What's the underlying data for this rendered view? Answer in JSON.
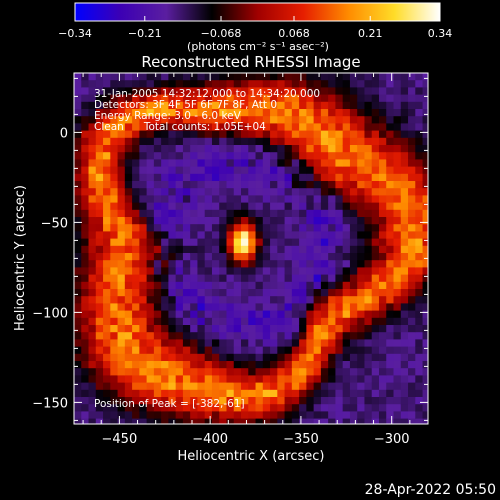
{
  "chart_data": {
    "type": "heatmap",
    "title": "Reconstructed RHESSI Image",
    "colorbar": {
      "label": "(photons cm⁻² s⁻¹ asec⁻²)",
      "min": -0.34,
      "max": 0.34,
      "tick_values": [
        -0.34,
        -0.21,
        -0.068,
        0.068,
        0.21,
        0.34
      ],
      "tick_labels": [
        "−0.34",
        "−0.21",
        "−0.068",
        "0.068",
        "0.21",
        "0.34"
      ],
      "colors": [
        "#0000ff",
        "#3c00b4",
        "#5a1ea0",
        "#000000",
        "#a00000",
        "#e61e00",
        "#ff8c00",
        "#ffdc28",
        "#ffffff"
      ]
    },
    "xlabel": "Heliocentric X (arcsec)",
    "ylabel": "Heliocentric Y (arcsec)",
    "xlim": [
      -475,
      -280
    ],
    "ylim": [
      -162,
      33
    ],
    "xticks": [
      -450,
      -400,
      -350,
      -300
    ],
    "xtick_labels": [
      "−450",
      "−400",
      "−350",
      "−300"
    ],
    "yticks": [
      0,
      -50,
      -100,
      -150
    ],
    "ytick_labels": [
      "0",
      "−50",
      "−100",
      "−150"
    ],
    "annotations": [
      "31-Jan-2005 14:32:12.000 to 14:34:20.000",
      "Detectors: 3F 4F 5F 6F 7F 8F, Att 0",
      "Energy Range: 3.0 - 6.0 keV",
      "Clean      Total counts: 1.05E+04"
    ],
    "peak_label": "Position of Peak = [-382,-61]",
    "peak": {
      "x": -382,
      "y": -61
    },
    "image_features": {
      "core": {
        "x": -382,
        "y": -61,
        "value": 0.34
      },
      "ring_value": 0.15,
      "background_value": -0.15
    }
  },
  "footer": {
    "timestamp": "28-Apr-2022 05:50"
  }
}
